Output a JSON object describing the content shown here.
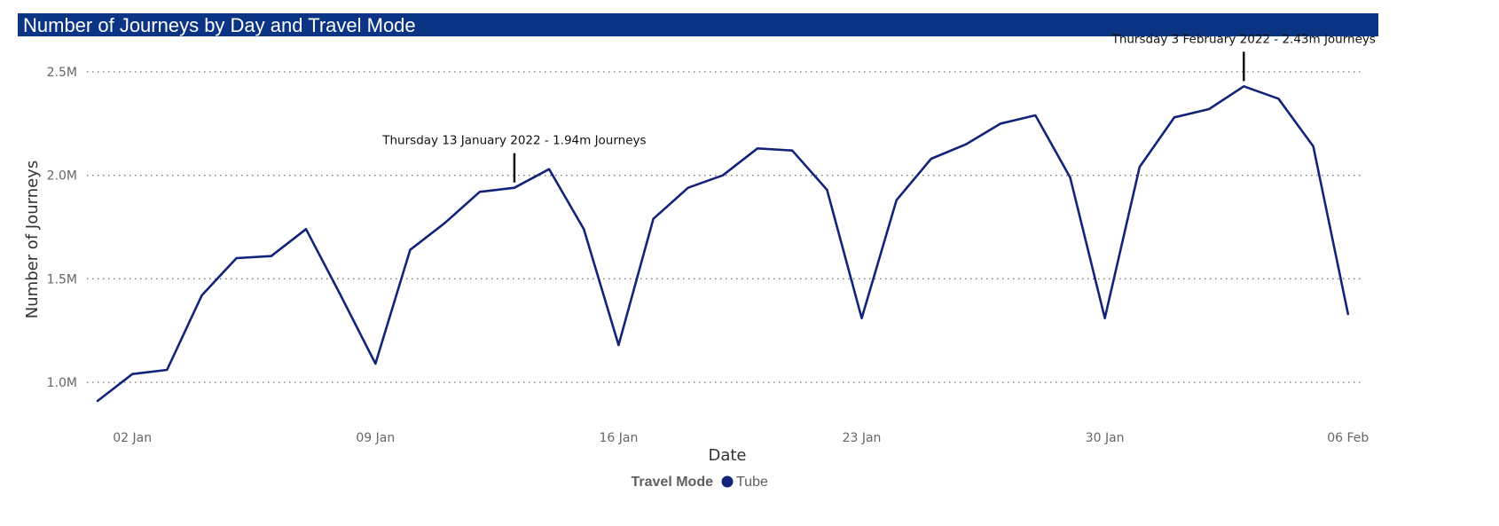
{
  "header": {
    "title": "Number of Journeys by Day and Travel Mode"
  },
  "colors": {
    "title_background": "#0b3484",
    "series_line": "#12247a",
    "grid": "#777777"
  },
  "chart_data": {
    "type": "line",
    "title": "Number of Journeys by Day and Travel Mode",
    "xlabel": "Date",
    "ylabel": "Number of Journeys",
    "ylim": [
      0.83,
      2.58
    ],
    "y_unit": "millions",
    "y_ticks": [
      {
        "value": 1.0,
        "label": "1.0M"
      },
      {
        "value": 1.5,
        "label": "1.5M"
      },
      {
        "value": 2.0,
        "label": "2.0M"
      },
      {
        "value": 2.5,
        "label": "2.5M"
      }
    ],
    "x_ticks": [
      {
        "date": "2022-01-02",
        "label": "02 Jan"
      },
      {
        "date": "2022-01-09",
        "label": "09 Jan"
      },
      {
        "date": "2022-01-16",
        "label": "16 Jan"
      },
      {
        "date": "2022-01-23",
        "label": "23 Jan"
      },
      {
        "date": "2022-01-30",
        "label": "30 Jan"
      },
      {
        "date": "2022-02-06",
        "label": "06 Feb"
      }
    ],
    "x_range": [
      "2021-12-31",
      "2022-02-06"
    ],
    "grid": {
      "horizontal": true,
      "style": "dotted"
    },
    "legend": {
      "title": "Travel Mode",
      "placement": "bottom-center"
    },
    "series": [
      {
        "name": "Tube",
        "color": "#12247a",
        "x": [
          "2022-01-01",
          "2022-01-02",
          "2022-01-03",
          "2022-01-04",
          "2022-01-05",
          "2022-01-06",
          "2022-01-07",
          "2022-01-08",
          "2022-01-09",
          "2022-01-10",
          "2022-01-11",
          "2022-01-12",
          "2022-01-13",
          "2022-01-14",
          "2022-01-15",
          "2022-01-16",
          "2022-01-17",
          "2022-01-18",
          "2022-01-19",
          "2022-01-20",
          "2022-01-21",
          "2022-01-22",
          "2022-01-23",
          "2022-01-24",
          "2022-01-25",
          "2022-01-26",
          "2022-01-27",
          "2022-01-28",
          "2022-01-29",
          "2022-01-30",
          "2022-01-31",
          "2022-02-01",
          "2022-02-02",
          "2022-02-03",
          "2022-02-04",
          "2022-02-05",
          "2022-02-06"
        ],
        "values": [
          0.91,
          1.04,
          1.06,
          1.42,
          1.6,
          1.61,
          1.74,
          1.42,
          1.09,
          1.64,
          1.77,
          1.92,
          1.94,
          2.03,
          1.74,
          1.18,
          1.79,
          1.94,
          2.0,
          2.13,
          2.12,
          1.93,
          1.31,
          1.88,
          2.08,
          2.15,
          2.25,
          2.29,
          1.99,
          1.31,
          2.04,
          2.28,
          2.32,
          2.43,
          2.37,
          2.14,
          1.33
        ]
      }
    ],
    "annotations": [
      {
        "date": "2022-01-13",
        "value": 1.94,
        "text": "Thursday 13 January 2022 - 1.94m Journeys"
      },
      {
        "date": "2022-02-03",
        "value": 2.43,
        "text": "Thursday 3 February 2022 - 2.43m Journeys"
      }
    ]
  }
}
